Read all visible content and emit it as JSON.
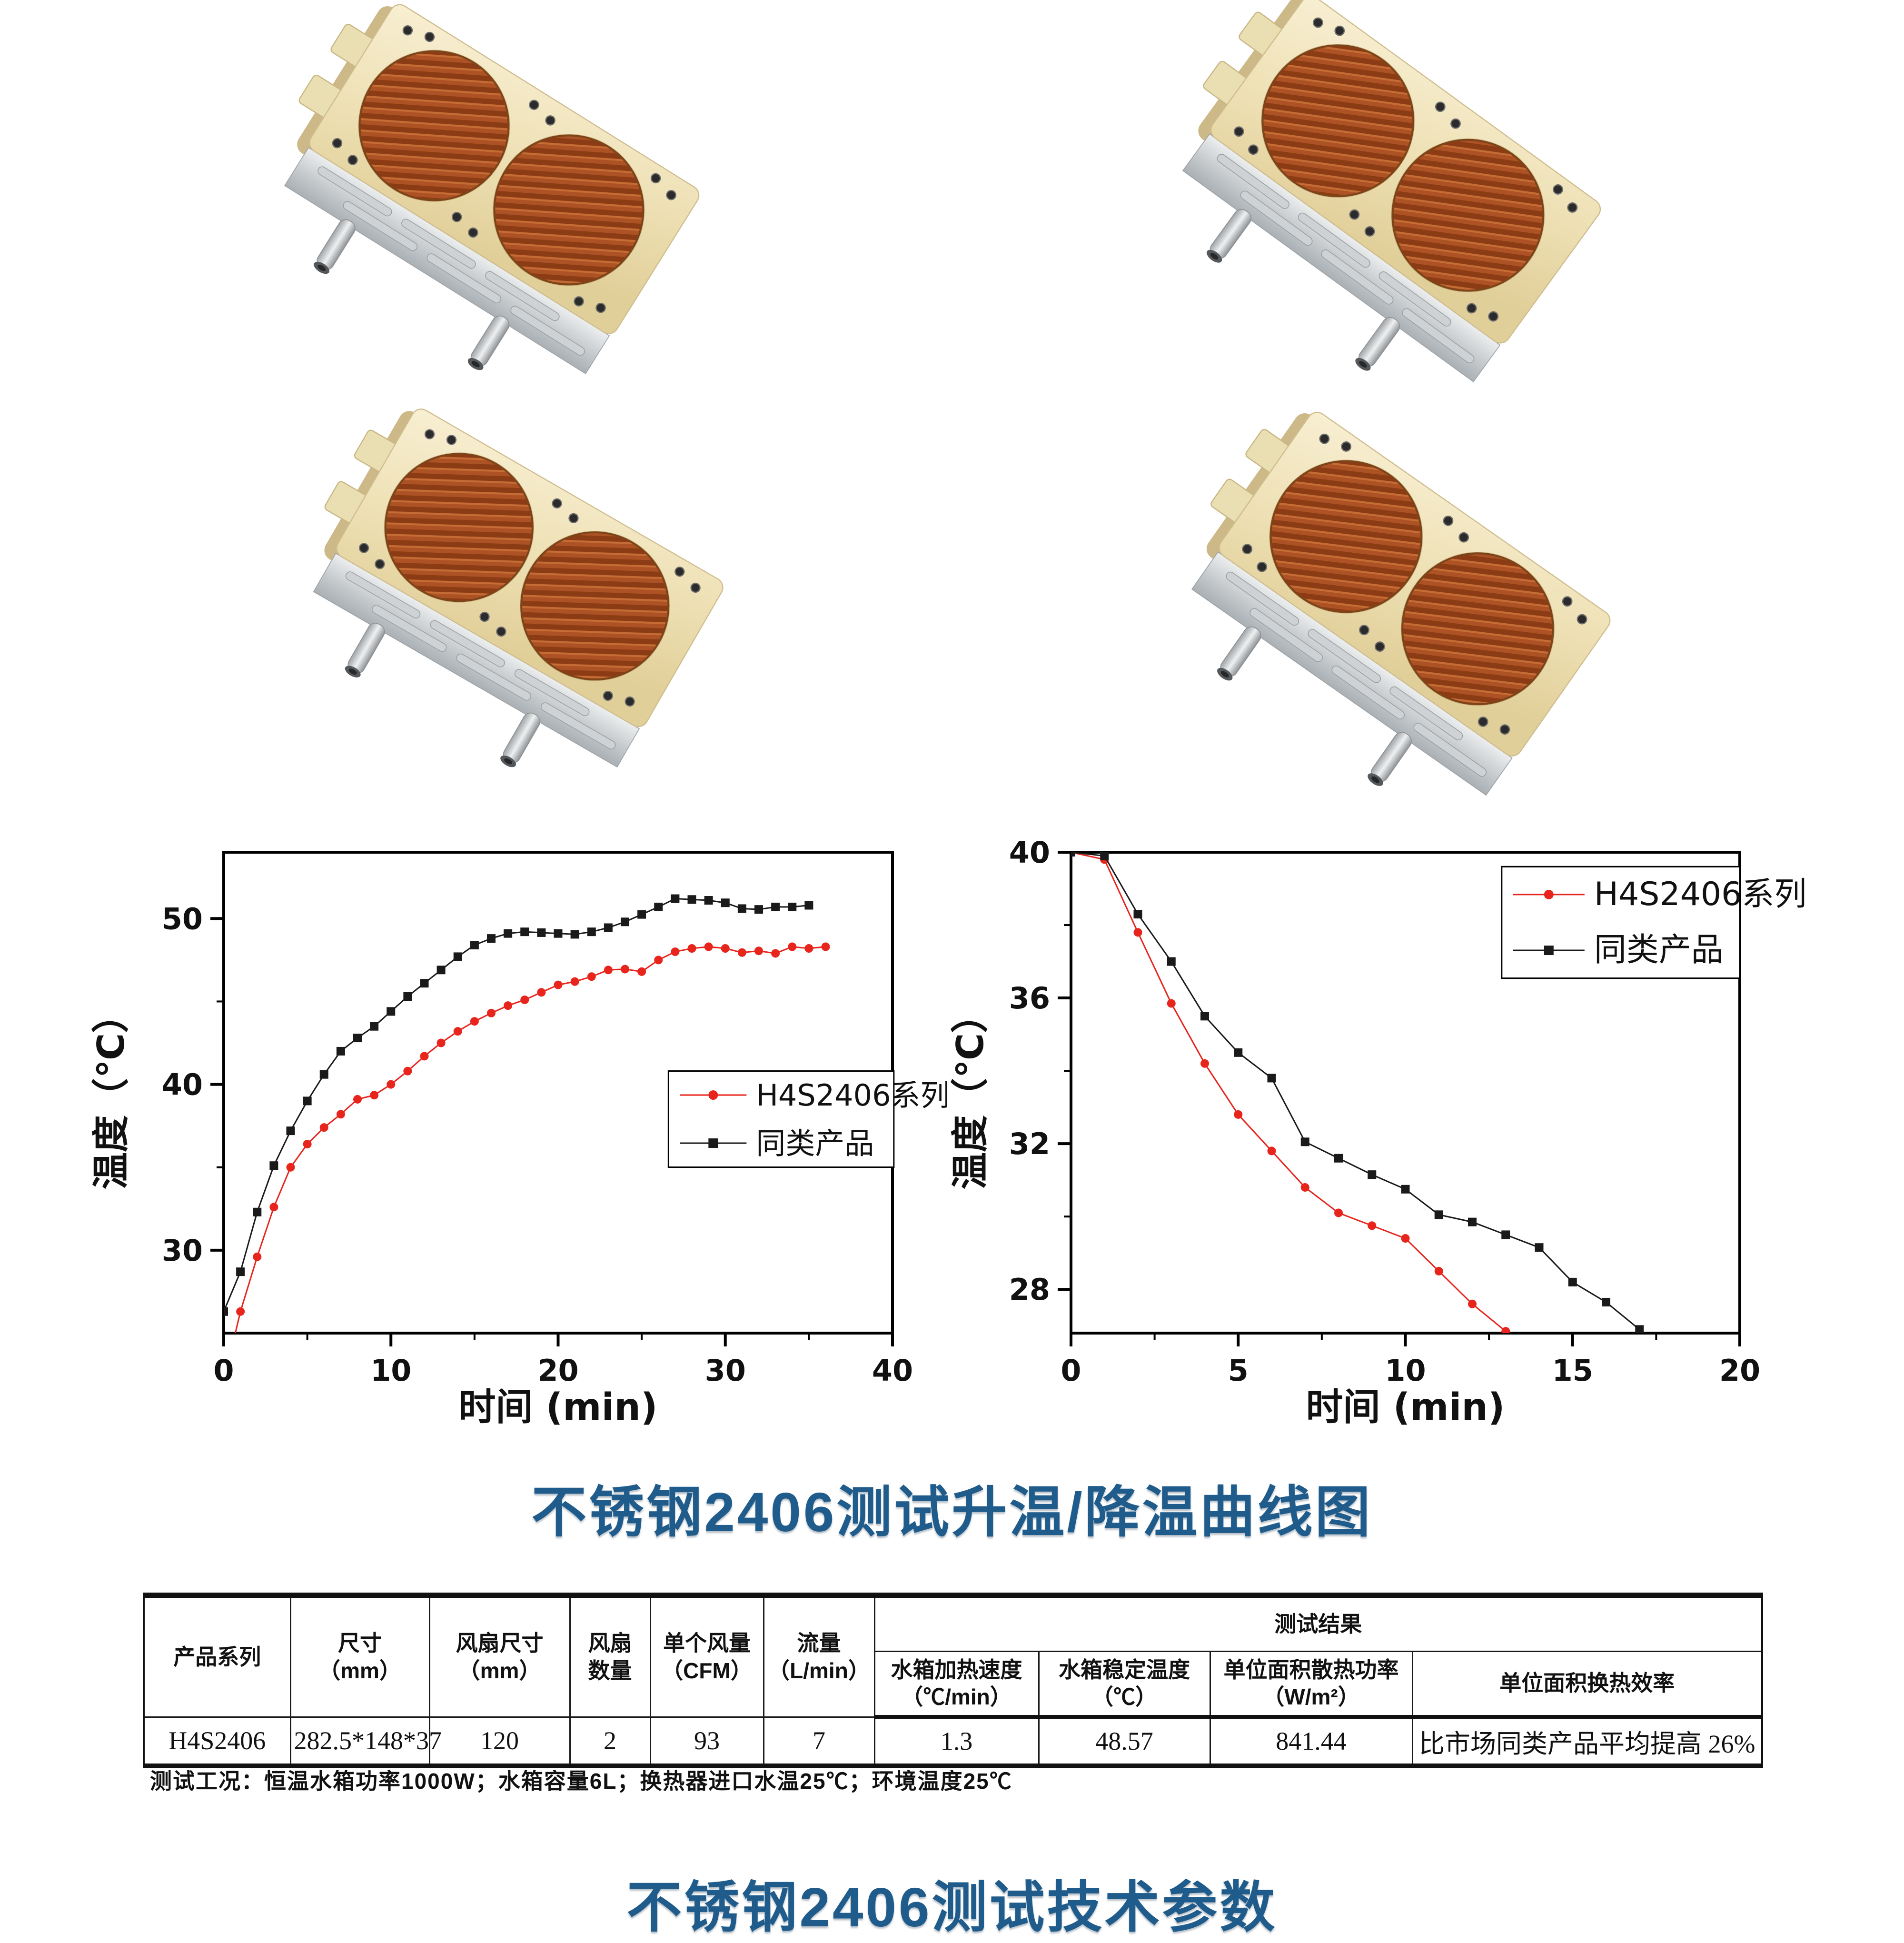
{
  "page": {
    "curve_section_title": "不锈钢2406测试升温/降温曲线图",
    "params_section_title": "不锈钢2406测试技术参数",
    "test_conditions_note": "测试工况：恒温水箱功率1000W；水箱容量6L；换热器进口水温25℃；环境温度25℃",
    "title_color": "#1f5c8b",
    "product_colors": {
      "frame_gold": "#eee3b8",
      "fin_copper": "#ad5224",
      "base_silver": "#c9cdd0"
    }
  },
  "chart_data": [
    {
      "type": "line",
      "title": "",
      "xlabel": "时间 (min)",
      "ylabel": "温度（℃）",
      "xlim": [
        0,
        40
      ],
      "ylim": [
        25,
        54
      ],
      "xticks": [
        0,
        10,
        20,
        30,
        40
      ],
      "yticks": [
        30,
        40,
        50
      ],
      "x_minor": [
        5,
        15,
        25,
        35
      ],
      "y_minor": [
        35,
        45
      ],
      "grid": false,
      "legend_position": "center-right",
      "series": [
        {
          "name": "H4S2406系列",
          "color": "#e8251d",
          "marker": "circle",
          "x": [
            0.6,
            1,
            2,
            3,
            4,
            5,
            6,
            7,
            8,
            9,
            10,
            11,
            12,
            13,
            14,
            15,
            16,
            17,
            18,
            19,
            20,
            21,
            22,
            23,
            24,
            25,
            26,
            27,
            28,
            29,
            30,
            31,
            32,
            33,
            34,
            35,
            36
          ],
          "y": [
            24.6,
            26.3,
            29.6,
            32.6,
            35.0,
            36.4,
            37.4,
            38.2,
            39.1,
            39.35,
            40.0,
            40.8,
            41.7,
            42.5,
            43.2,
            43.8,
            44.3,
            44.75,
            45.1,
            45.55,
            46.0,
            46.2,
            46.5,
            46.9,
            46.95,
            46.8,
            47.5,
            48.0,
            48.2,
            48.3,
            48.2,
            47.95,
            48.05,
            47.9,
            48.3,
            48.2,
            48.3
          ]
        },
        {
          "name": "同类产品",
          "color": "#1a1a1a",
          "marker": "square",
          "x": [
            0,
            1,
            2,
            3,
            4,
            5,
            6,
            7,
            8,
            9,
            10,
            11,
            12,
            13,
            14,
            15,
            16,
            17,
            18,
            19,
            20,
            21,
            22,
            23,
            24,
            25,
            26,
            27,
            28,
            29,
            30,
            31,
            32,
            33,
            34,
            35
          ],
          "y": [
            26.3,
            28.7,
            32.3,
            35.1,
            37.2,
            39.0,
            40.6,
            42.0,
            42.8,
            43.5,
            44.4,
            45.3,
            46.1,
            46.9,
            47.7,
            48.4,
            48.8,
            49.1,
            49.2,
            49.15,
            49.1,
            49.05,
            49.2,
            49.45,
            49.8,
            50.25,
            50.7,
            51.2,
            51.15,
            51.1,
            50.95,
            50.6,
            50.55,
            50.7,
            50.7,
            50.8
          ]
        }
      ]
    },
    {
      "type": "line",
      "title": "",
      "xlabel": "时间 (min)",
      "ylabel": "温度（℃）",
      "xlim": [
        0,
        20
      ],
      "ylim": [
        26.8,
        40
      ],
      "xticks": [
        0,
        5,
        10,
        15,
        20
      ],
      "yticks": [
        28,
        32,
        36,
        40
      ],
      "x_minor": [
        2.5,
        7.5,
        12.5,
        17.5
      ],
      "y_minor": [
        30,
        34,
        38
      ],
      "grid": false,
      "legend_position": "top-right",
      "series": [
        {
          "name": "H4S2406系列",
          "color": "#e8251d",
          "marker": "circle",
          "x": [
            0,
            1,
            2,
            3,
            4,
            5,
            6,
            7,
            8,
            9,
            10,
            11,
            12,
            13
          ],
          "y": [
            40.0,
            39.8,
            37.8,
            35.85,
            34.2,
            32.8,
            31.8,
            30.8,
            30.1,
            29.75,
            29.4,
            28.5,
            27.6,
            26.85
          ]
        },
        {
          "name": "同类产品",
          "color": "#1a1a1a",
          "marker": "square",
          "x": [
            0,
            1,
            2,
            3,
            4,
            5,
            6,
            7,
            8,
            9,
            10,
            11,
            12,
            13,
            14,
            15,
            16,
            17
          ],
          "y": [
            40.0,
            39.9,
            38.3,
            37.0,
            35.5,
            34.5,
            33.8,
            32.05,
            31.6,
            31.15,
            30.75,
            30.05,
            29.85,
            29.5,
            29.15,
            28.2,
            27.65,
            26.9
          ]
        }
      ]
    }
  ],
  "table": {
    "group_header": "测试结果",
    "headers": [
      "产品系列",
      "尺寸\n（mm）",
      "风扇尺寸\n（mm）",
      "风扇\n数量",
      "单个风量\n（CFM）",
      "流量\n（L/min）",
      "水箱加热速度\n（℃/min）",
      "水箱稳定温度\n（℃）",
      "单位面积散热功率\n（W/m²）",
      "单位面积换热效率"
    ],
    "row": [
      "H4S2406",
      "282.5*148*37",
      "120",
      "2",
      "93",
      "7",
      "1.3",
      "48.57",
      "841.44",
      "比市场同类产品平均提高 26%"
    ]
  }
}
